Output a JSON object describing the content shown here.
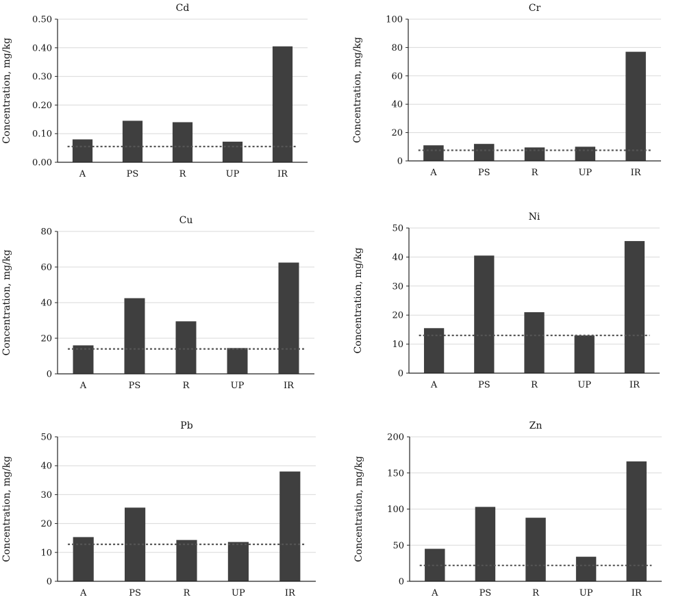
{
  "style": {
    "bar_color": "#3f3f3f",
    "grid_color": "#d9d9d9",
    "axis_color": "#222222",
    "reference_line_color": "#555555",
    "reference_line_style": "dotted"
  },
  "chart_data": [
    {
      "type": "bar",
      "title": "Cd",
      "ylabel": "Concentration, mg/kg",
      "xlabel": "",
      "categories": [
        "A",
        "PS",
        "R",
        "UP",
        "IR"
      ],
      "values": [
        0.08,
        0.145,
        0.14,
        0.072,
        0.405
      ],
      "reference_line": 0.055,
      "ylim": [
        0,
        0.5
      ],
      "yticks": [
        "0.00",
        "0.10",
        "0.20",
        "0.30",
        "0.40",
        "0.50"
      ],
      "grid": true
    },
    {
      "type": "bar",
      "title": "Cr",
      "ylabel": "Concentration, mg/kg",
      "xlabel": "",
      "categories": [
        "A",
        "PS",
        "R",
        "UP",
        "IR"
      ],
      "values": [
        11,
        12,
        9.5,
        10,
        77
      ],
      "reference_line": 7.5,
      "ylim": [
        0,
        100
      ],
      "yticks": [
        "0",
        "20",
        "40",
        "60",
        "80",
        "100"
      ],
      "grid": true
    },
    {
      "type": "bar",
      "title": "Cu",
      "ylabel": "Concentration, mg/kg",
      "xlabel": "",
      "categories": [
        "A",
        "PS",
        "R",
        "UP",
        "IR"
      ],
      "values": [
        16,
        42.5,
        29.5,
        14.5,
        62.5
      ],
      "reference_line": 14,
      "ylim": [
        0,
        80
      ],
      "yticks": [
        "0",
        "20",
        "40",
        "60",
        "80"
      ],
      "grid": true
    },
    {
      "type": "bar",
      "title": "Ni",
      "ylabel": "Concentration, mg/kg",
      "xlabel": "",
      "categories": [
        "A",
        "PS",
        "R",
        "UP",
        "IR"
      ],
      "values": [
        15.5,
        40.5,
        21,
        13,
        45.5
      ],
      "reference_line": 13,
      "ylim": [
        0,
        50
      ],
      "yticks": [
        "0",
        "10",
        "20",
        "30",
        "40",
        "50"
      ],
      "grid": true
    },
    {
      "type": "bar",
      "title": "Pb",
      "ylabel": "Concentration, mg/kg",
      "xlabel": "",
      "categories": [
        "A",
        "PS",
        "R",
        "UP",
        "IR"
      ],
      "values": [
        15.3,
        25.5,
        14.3,
        13.6,
        38
      ],
      "reference_line": 12.8,
      "ylim": [
        0,
        50
      ],
      "yticks": [
        "0",
        "10",
        "20",
        "30",
        "40",
        "50"
      ],
      "grid": true
    },
    {
      "type": "bar",
      "title": "Zn",
      "ylabel": "Concentration, mg/kg",
      "xlabel": "",
      "categories": [
        "A",
        "PS",
        "R",
        "UP",
        "IR"
      ],
      "values": [
        45,
        103,
        88,
        34,
        166
      ],
      "reference_line": 22,
      "ylim": [
        0,
        200
      ],
      "yticks": [
        "0",
        "50",
        "100",
        "150",
        "200"
      ],
      "grid": true
    }
  ]
}
